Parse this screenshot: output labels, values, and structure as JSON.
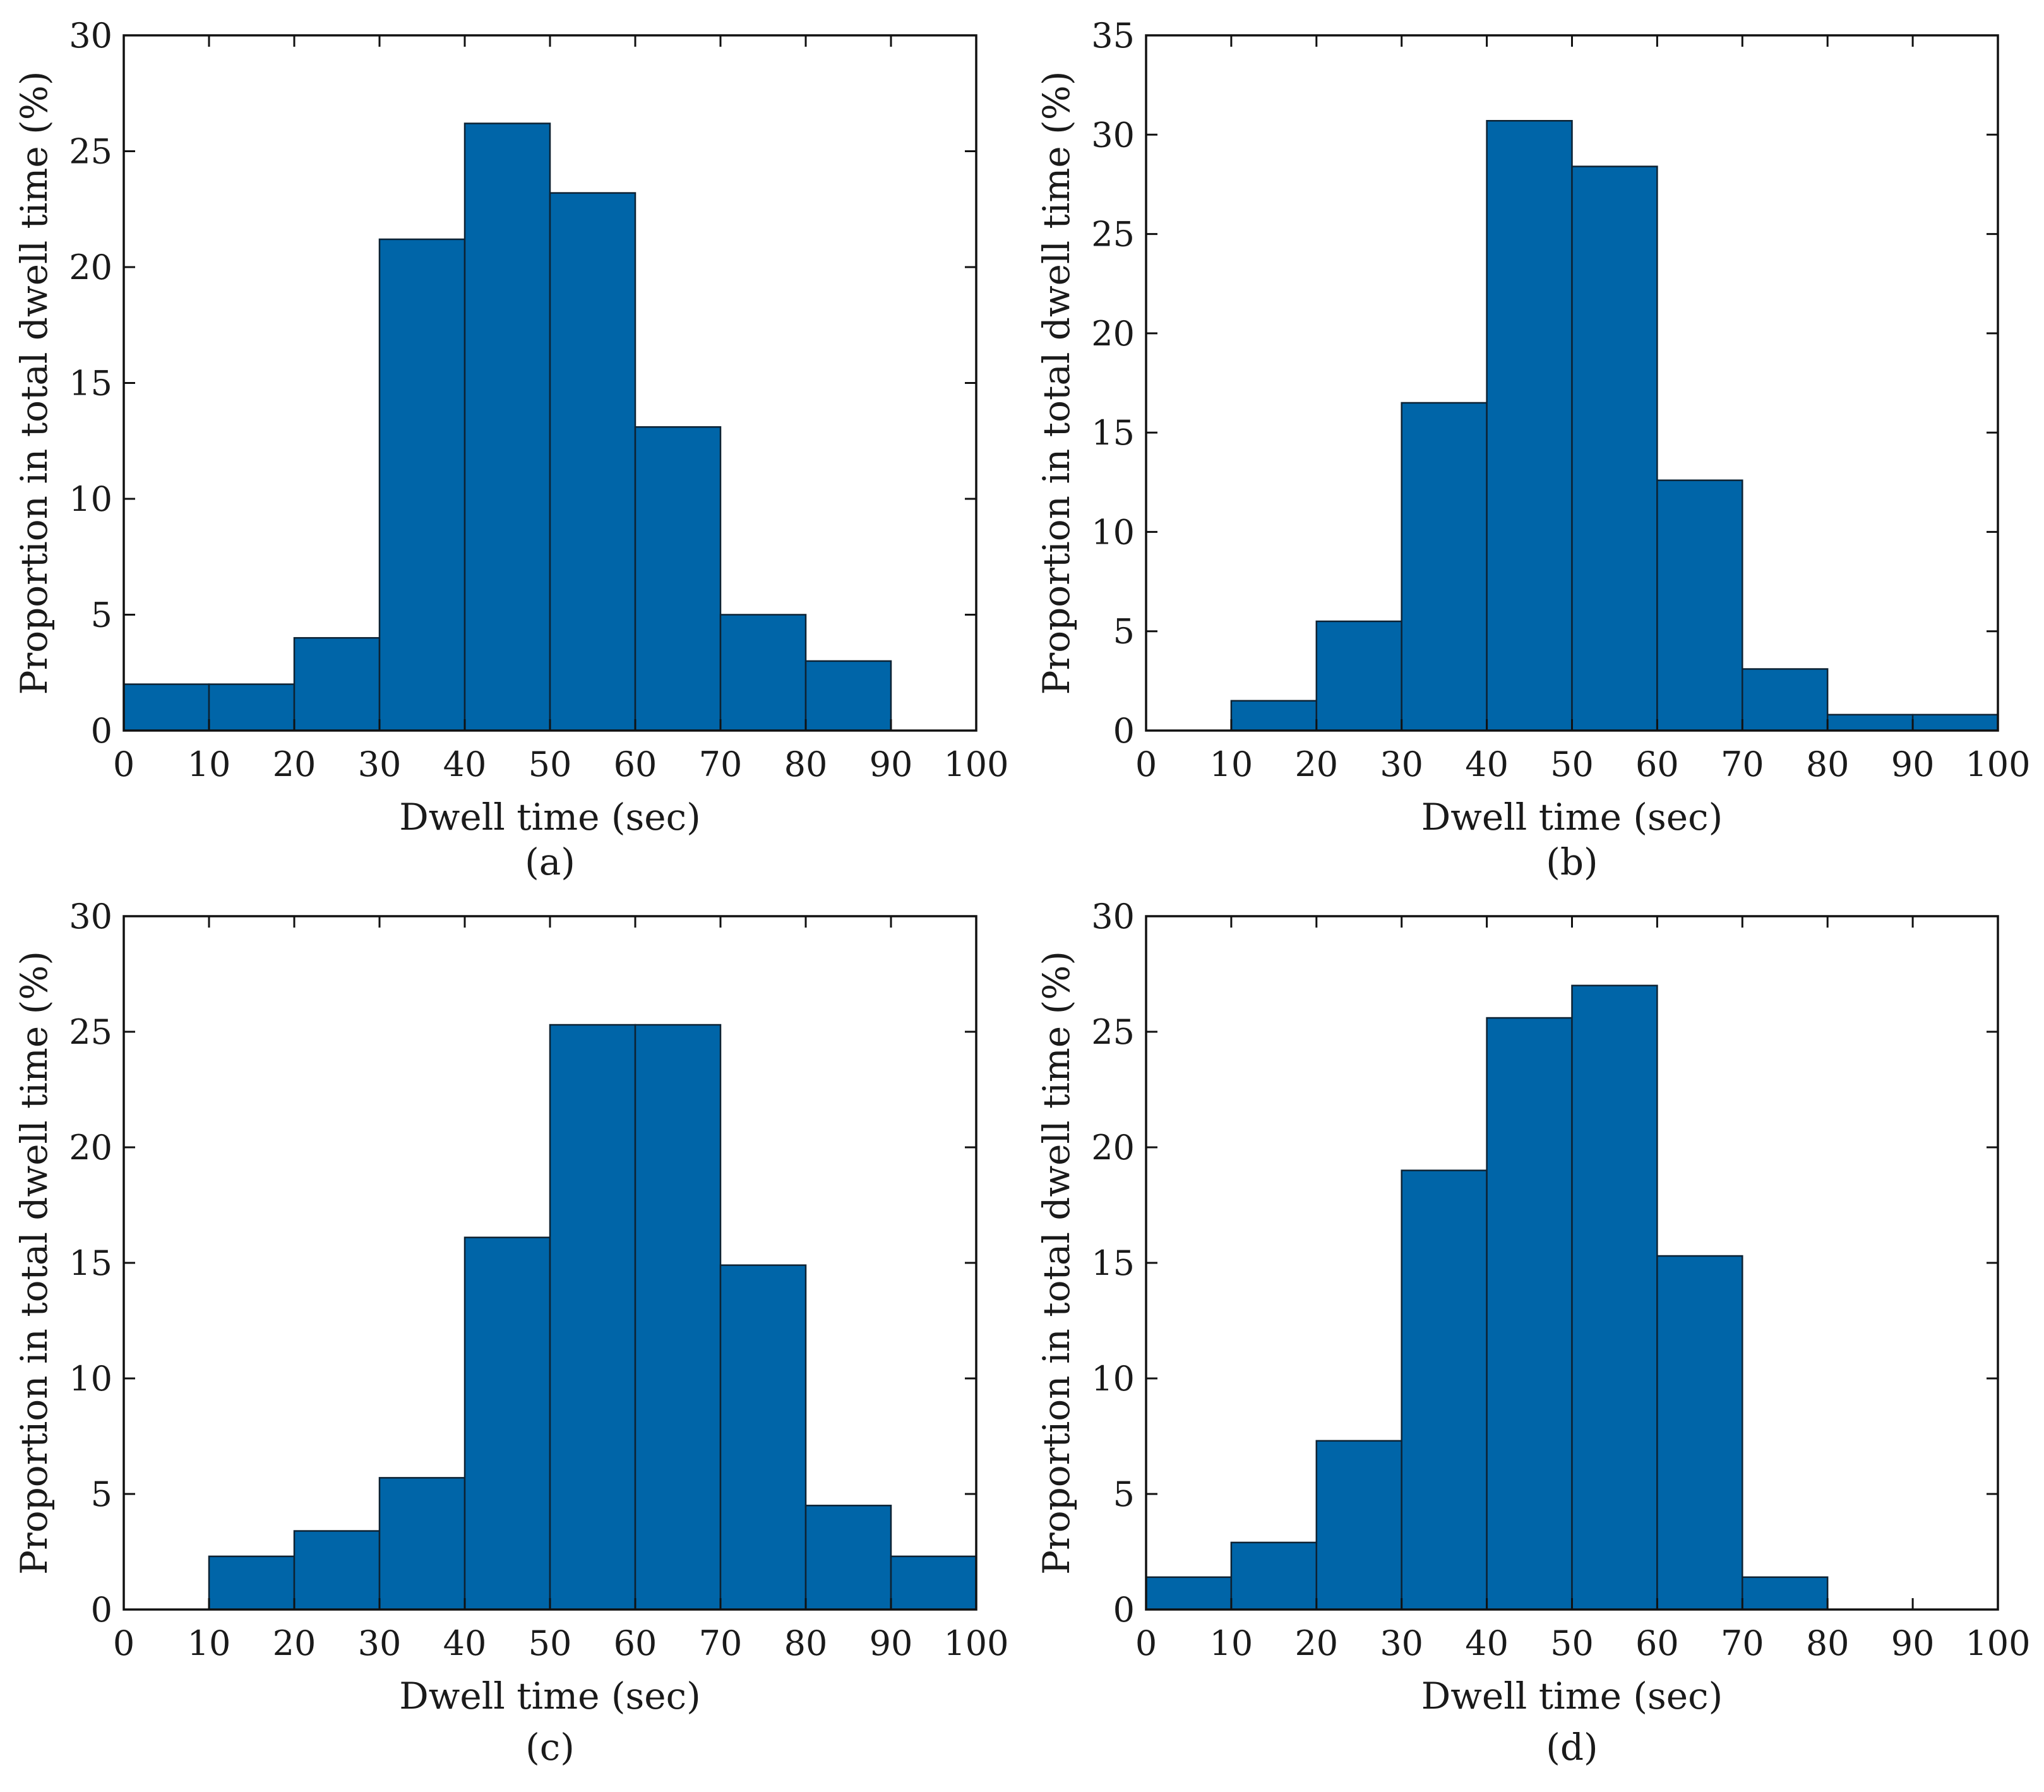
{
  "colors": {
    "bar": "#0065A8",
    "bar_edge": "#0d2233",
    "axis": "#111111",
    "background": "#ffffff"
  },
  "chart_data": [
    {
      "type": "bar",
      "panel_label": "(a)",
      "xlabel": "Dwell time (sec)",
      "ylabel": "Proportion in total dwell time (%)",
      "xlim": [
        0,
        100
      ],
      "ylim": [
        0,
        30
      ],
      "xticks": [
        0,
        10,
        20,
        30,
        40,
        50,
        60,
        70,
        80,
        90,
        100
      ],
      "yticks": [
        0,
        5,
        10,
        15,
        20,
        25,
        30
      ],
      "bin_edges": [
        0,
        10,
        20,
        30,
        40,
        50,
        60,
        70,
        80,
        90,
        100
      ],
      "values": [
        2.0,
        2.0,
        4.0,
        21.2,
        26.2,
        23.2,
        13.1,
        5.0,
        3.0,
        0
      ],
      "grid": false
    },
    {
      "type": "bar",
      "panel_label": "(b)",
      "xlabel": "Dwell time (sec)",
      "ylabel": "Proportion in total dwell time (%)",
      "xlim": [
        0,
        100
      ],
      "ylim": [
        0,
        35
      ],
      "xticks": [
        0,
        10,
        20,
        30,
        40,
        50,
        60,
        70,
        80,
        90,
        100
      ],
      "yticks": [
        0,
        5,
        10,
        15,
        20,
        25,
        30,
        35
      ],
      "bin_edges": [
        0,
        10,
        20,
        30,
        40,
        50,
        60,
        70,
        80,
        90,
        100
      ],
      "values": [
        0,
        1.5,
        5.5,
        16.5,
        30.7,
        28.4,
        12.6,
        3.1,
        0.8,
        0.8
      ],
      "grid": false
    },
    {
      "type": "bar",
      "panel_label": "(c)",
      "xlabel": "Dwell time (sec)",
      "ylabel": "Proportion in total dwell time (%)",
      "xlim": [
        0,
        100
      ],
      "ylim": [
        0,
        30
      ],
      "xticks": [
        0,
        10,
        20,
        30,
        40,
        50,
        60,
        70,
        80,
        90,
        100
      ],
      "yticks": [
        0,
        5,
        10,
        15,
        20,
        25,
        30
      ],
      "bin_edges": [
        0,
        10,
        20,
        30,
        40,
        50,
        60,
        70,
        80,
        90,
        100
      ],
      "values": [
        0,
        2.3,
        3.4,
        5.7,
        16.1,
        25.3,
        25.3,
        14.9,
        4.5,
        2.3
      ],
      "grid": false
    },
    {
      "type": "bar",
      "panel_label": "(d)",
      "xlabel": "Dwell time (sec)",
      "ylabel": "Proportion in total dwell time (%)",
      "xlim": [
        0,
        100
      ],
      "ylim": [
        0,
        30
      ],
      "xticks": [
        0,
        10,
        20,
        30,
        40,
        50,
        60,
        70,
        80,
        90,
        100
      ],
      "yticks": [
        0,
        5,
        10,
        15,
        20,
        25,
        30
      ],
      "bin_edges": [
        0,
        10,
        20,
        30,
        40,
        50,
        60,
        70,
        80,
        90,
        100
      ],
      "values": [
        1.4,
        2.9,
        7.3,
        19.0,
        25.6,
        27.0,
        15.3,
        1.4,
        0,
        0
      ],
      "grid": false
    }
  ]
}
